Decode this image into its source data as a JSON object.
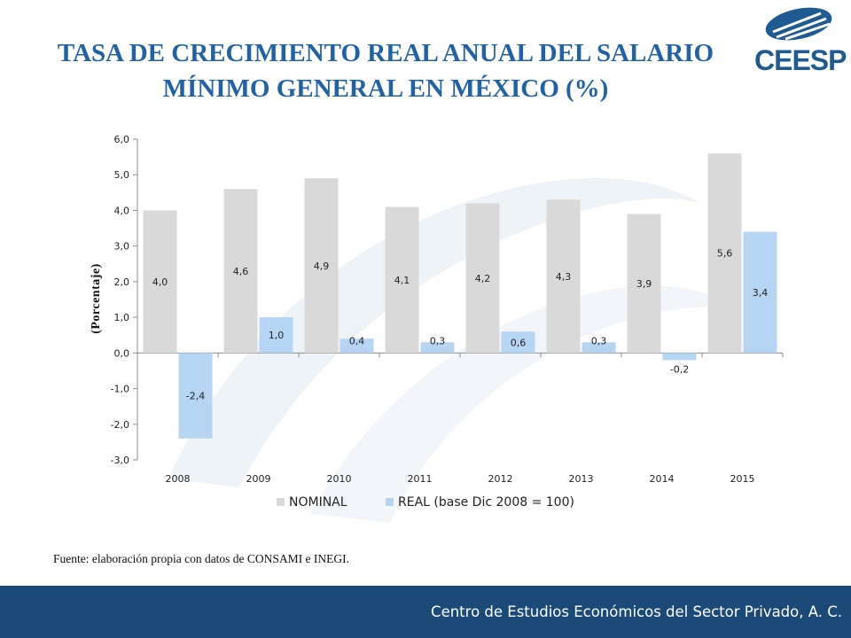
{
  "header": {
    "title_line1": "TASA DE CRECIMIENTO REAL ANUAL DEL SALARIO",
    "title_line2": "MÍNIMO GENERAL EN MÉXICO (%)",
    "logo_text": "CEESP"
  },
  "chart_data": {
    "type": "bar",
    "categories": [
      "2008",
      "2009",
      "2010",
      "2011",
      "2012",
      "2013",
      "2014",
      "2015"
    ],
    "series": [
      {
        "name": "NOMINAL",
        "color": "#d9d9d9",
        "values": [
          4.0,
          4.6,
          4.9,
          4.1,
          4.2,
          4.3,
          3.9,
          5.6
        ]
      },
      {
        "name": "REAL (base Dic 2008 = 100)",
        "color": "#b5d5f2",
        "values": [
          -2.4,
          1.0,
          0.4,
          0.3,
          0.6,
          0.3,
          -0.2,
          3.4
        ]
      }
    ],
    "data_labels": {
      "NOMINAL": [
        "4,0",
        "4,6",
        "4,9",
        "4,1",
        "4,2",
        "4,3",
        "3,9",
        "5,6"
      ],
      "REAL": [
        "-2,4",
        "1,0",
        "0,4",
        "0,3",
        "0,6",
        "0,3",
        "-0,2",
        "3,4"
      ]
    },
    "ylabel": "(Porcentaje)",
    "ylim": [
      -3.0,
      6.0
    ],
    "yticks": [
      6.0,
      5.0,
      4.0,
      3.0,
      2.0,
      1.0,
      0.0,
      -1.0,
      -2.0,
      -3.0
    ],
    "ytick_labels": [
      "6,0",
      "5,0",
      "4,0",
      "3,0",
      "2,0",
      "1,0",
      "0,0",
      "-1,0",
      "-2,0",
      "-3,0"
    ],
    "legend_position": "bottom",
    "grid": false
  },
  "source_note": "Fuente: elaboración propia con datos de CONSAMI e INEGI.",
  "footer": {
    "organization": "Centro de Estudios Económicos del Sector Privado, A. C.",
    "color": "#1b4a78"
  }
}
